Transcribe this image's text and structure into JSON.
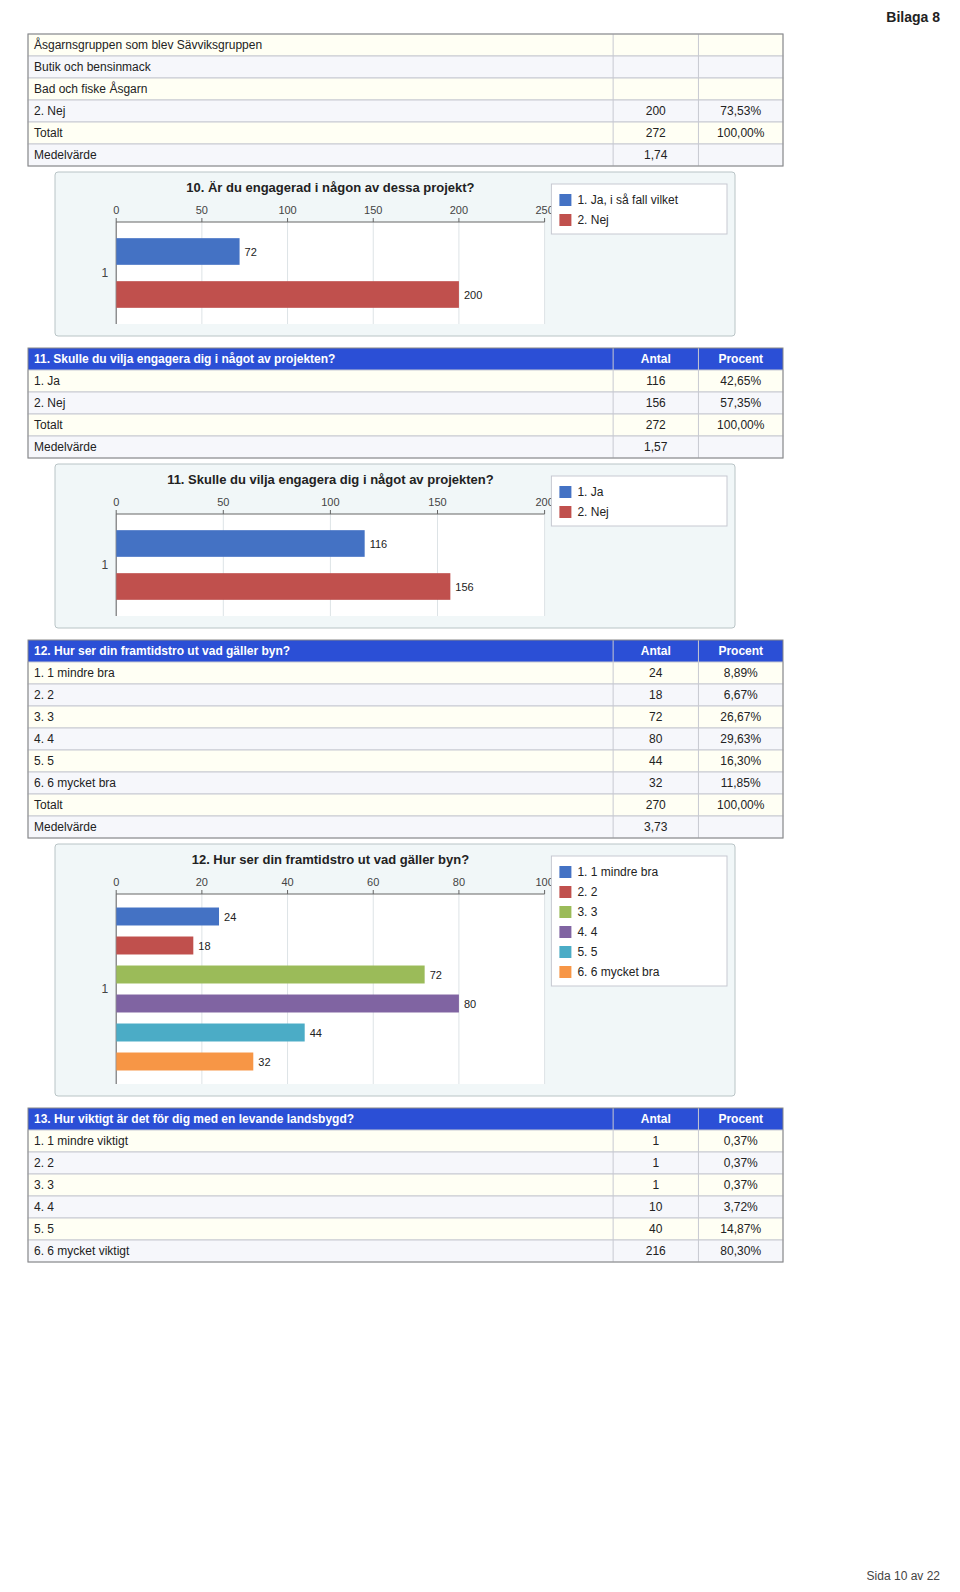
{
  "chart_data": [
    {
      "type": "table",
      "annotations": [
        "Bilaga 8",
        "Sida 10 av 22"
      ],
      "categories": [
        "Åsgarnsgruppen som blev Sävviksgruppen",
        "Butik och bensinmack",
        "Bad och fiske Åsgarn",
        "2. Nej",
        "Totalt",
        "Medelvärde"
      ],
      "series": [
        {
          "values": [
            null,
            null,
            null,
            200,
            272,
            1.74
          ],
          "value_labels": [
            null,
            null,
            null,
            "200",
            "272",
            "1,74"
          ]
        },
        {
          "values": [
            null,
            null,
            null,
            73.53,
            100.0,
            null
          ],
          "value_labels": [
            null,
            null,
            null,
            "73,53%",
            "100,00%",
            null
          ]
        }
      ]
    },
    {
      "type": "bar",
      "orientation": "horizontal",
      "title": "10. Är du engagerad i någon av dessa projekt?",
      "categories": [
        "1"
      ],
      "series": [
        {
          "name": "1. Ja, i så fall vilket",
          "color": "#4472C4",
          "values": [
            72
          ]
        },
        {
          "name": "2. Nej",
          "color": "#C0504D",
          "values": [
            200
          ]
        }
      ],
      "xlim": [
        0,
        250
      ],
      "xticks": [
        0,
        50,
        100,
        150,
        200,
        250
      ],
      "grid": true,
      "legend": "right",
      "data_labels": true
    },
    {
      "type": "table",
      "title": "11. Skulle du vilja engagera dig i något av projekten?",
      "categories": [
        "1. Ja",
        "2. Nej",
        "Totalt",
        "Medelvärde"
      ],
      "series": [
        {
          "name": "Antal",
          "values": [
            116,
            156,
            272,
            1.57
          ],
          "value_labels": [
            "116",
            "156",
            "272",
            "1,57"
          ]
        },
        {
          "name": "Procent",
          "values": [
            42.65,
            57.35,
            100.0,
            null
          ],
          "value_labels": [
            "42,65%",
            "57,35%",
            "100,00%",
            null
          ]
        }
      ]
    },
    {
      "type": "bar",
      "orientation": "horizontal",
      "title": "11. Skulle du vilja engagera dig i något av projekten?",
      "categories": [
        "1"
      ],
      "series": [
        {
          "name": "1. Ja",
          "color": "#4472C4",
          "values": [
            116
          ]
        },
        {
          "name": "2. Nej",
          "color": "#C0504D",
          "values": [
            156
          ]
        }
      ],
      "xlim": [
        0,
        200
      ],
      "xticks": [
        0,
        50,
        100,
        150,
        200
      ],
      "grid": true,
      "legend": "right",
      "data_labels": true
    },
    {
      "type": "table",
      "title": "12. Hur ser din framtidstro ut vad gäller byn?",
      "categories": [
        "1. 1 mindre bra",
        "2. 2",
        "3. 3",
        "4. 4",
        "5. 5",
        "6. 6 mycket bra",
        "Totalt",
        "Medelvärde"
      ],
      "series": [
        {
          "name": "Antal",
          "values": [
            24,
            18,
            72,
            80,
            44,
            32,
            270,
            3.73
          ],
          "value_labels": [
            "24",
            "18",
            "72",
            "80",
            "44",
            "32",
            "270",
            "3,73"
          ]
        },
        {
          "name": "Procent",
          "values": [
            8.89,
            6.67,
            26.67,
            29.63,
            16.3,
            11.85,
            100.0,
            null
          ],
          "value_labels": [
            "8,89%",
            "6,67%",
            "26,67%",
            "29,63%",
            "16,30%",
            "11,85%",
            "100,00%",
            null
          ]
        }
      ]
    },
    {
      "type": "bar",
      "orientation": "horizontal",
      "title": "12. Hur ser din framtidstro ut vad gäller byn?",
      "categories": [
        "1"
      ],
      "series": [
        {
          "name": "1. 1 mindre bra",
          "color": "#4472C4",
          "values": [
            24
          ]
        },
        {
          "name": "2. 2",
          "color": "#C0504D",
          "values": [
            18
          ]
        },
        {
          "name": "3. 3",
          "color": "#9BBB59",
          "values": [
            72
          ]
        },
        {
          "name": "4. 4",
          "color": "#8064A2",
          "values": [
            80
          ]
        },
        {
          "name": "5. 5",
          "color": "#4BACC6",
          "values": [
            44
          ]
        },
        {
          "name": "6. 6 mycket bra",
          "color": "#F79646",
          "values": [
            32
          ]
        }
      ],
      "xlim": [
        0,
        100
      ],
      "xticks": [
        0,
        20,
        40,
        60,
        80,
        100
      ],
      "grid": true,
      "legend": "right",
      "data_labels": true
    },
    {
      "type": "table",
      "title": "13. Hur viktigt är det för dig med en levande landsbygd?",
      "categories": [
        "1. 1 mindre viktigt",
        "2. 2",
        "3. 3",
        "4. 4",
        "5. 5",
        "6. 6 mycket viktigt"
      ],
      "series": [
        {
          "name": "Antal",
          "values": [
            1,
            1,
            1,
            10,
            40,
            216
          ],
          "value_labels": [
            "1",
            "1",
            "1",
            "10",
            "40",
            "216"
          ]
        },
        {
          "name": "Procent",
          "values": [
            0.37,
            0.37,
            0.37,
            3.72,
            14.87,
            80.3
          ],
          "value_labels": [
            "0,37%",
            "0,37%",
            "0,37%",
            "3,72%",
            "14,87%",
            "80,30%"
          ]
        }
      ]
    }
  ]
}
